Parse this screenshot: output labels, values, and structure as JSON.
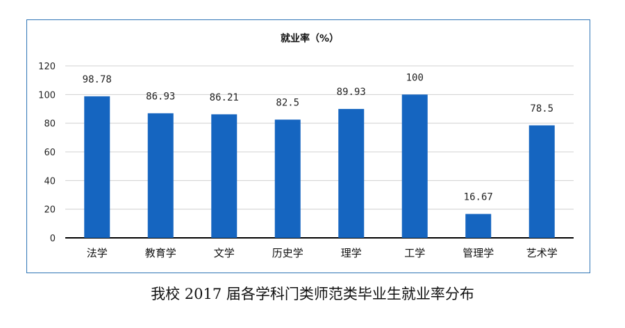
{
  "caption": "我校 2017 届各学科门类师范类毕业生就业率分布",
  "chart_data": {
    "type": "bar",
    "title": "就业率（%）",
    "categories": [
      "法学",
      "教育学",
      "文学",
      "历史学",
      "理学",
      "工学",
      "管理学",
      "艺术学"
    ],
    "values": [
      98.78,
      86.93,
      86.21,
      82.5,
      89.93,
      100,
      16.67,
      78.5
    ],
    "value_labels": [
      "98.78",
      "86.93",
      "86.21",
      "82.5",
      "89.93",
      "100",
      "16.67",
      "78.5"
    ],
    "ylim": [
      0,
      120
    ],
    "yticks": [
      0,
      20,
      40,
      60,
      80,
      100,
      120
    ],
    "grid": true,
    "legend": "none",
    "bar_color": "#1565c0",
    "grid_color": "#d0d0d0",
    "axis_color": "#000000"
  }
}
